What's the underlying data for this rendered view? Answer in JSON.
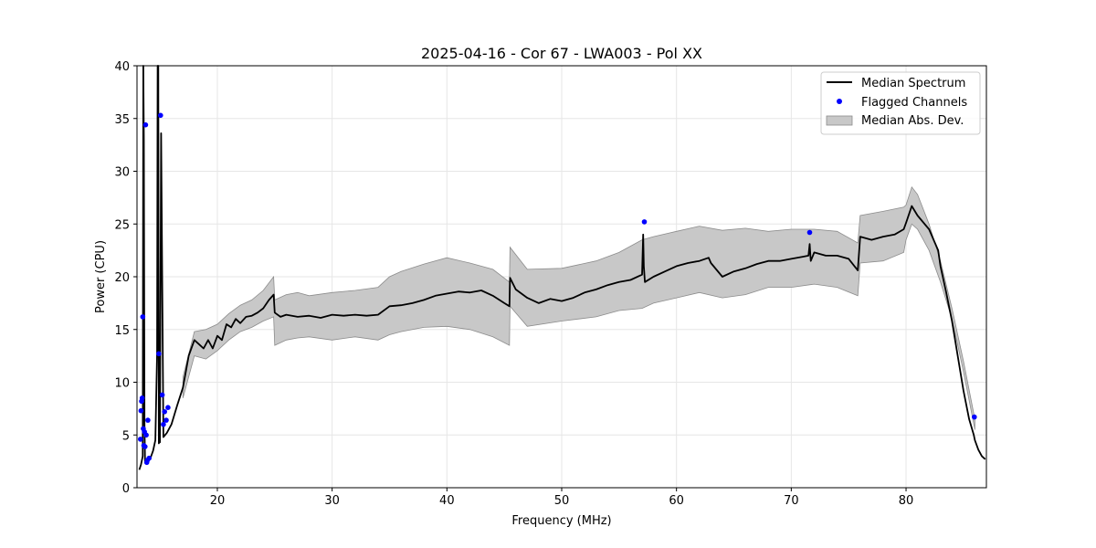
{
  "chart_data": {
    "type": "line",
    "title": "2025-04-16 - Cor 67 - LWA003 - Pol XX",
    "xlabel": "Frequency (MHz)",
    "ylabel": "Power (CPU)",
    "xlim": [
      13,
      87
    ],
    "ylim": [
      0,
      40
    ],
    "xticks": [
      20,
      30,
      40,
      50,
      60,
      70,
      80
    ],
    "yticks": [
      0,
      5,
      10,
      15,
      20,
      25,
      30,
      35,
      40
    ],
    "grid": true,
    "legend_position": "top-right",
    "colors": {
      "median": "#000000",
      "flagged": "#0000ff",
      "band": "#c8c8c8",
      "band_edge": "#8c8c8c",
      "grid": "#e6e6e6"
    },
    "series": [
      {
        "name": "Median Spectrum",
        "kind": "line",
        "x": [
          13.2,
          13.35,
          13.5,
          13.55,
          13.6,
          13.65,
          13.7,
          13.8,
          13.9,
          14.0,
          14.2,
          14.4,
          14.6,
          14.75,
          14.8,
          14.85,
          14.9,
          14.95,
          15.0,
          15.1,
          15.3,
          15.6,
          16.0,
          16.5,
          17.0,
          17.5,
          18.0,
          18.4,
          18.8,
          19.2,
          19.6,
          20.0,
          20.4,
          20.8,
          21.2,
          21.6,
          22.0,
          22.5,
          23.0,
          23.5,
          24.0,
          24.5,
          24.9,
          25.0,
          25.5,
          26.0,
          27.0,
          28.0,
          29.0,
          30.0,
          31.0,
          32.0,
          33.0,
          34.0,
          35.0,
          36.0,
          37.0,
          38.0,
          39.0,
          40.0,
          41.0,
          42.0,
          43.0,
          44.0,
          45.0,
          45.45,
          45.5,
          46.0,
          47.0,
          48.0,
          49.0,
          50.0,
          51.0,
          52.0,
          53.0,
          54.0,
          55.0,
          56.0,
          57.0,
          57.1,
          57.15,
          57.25,
          58.0,
          59.0,
          60.0,
          61.0,
          62.0,
          62.8,
          63.0,
          64.0,
          65.0,
          66.0,
          67.0,
          68.0,
          69.0,
          70.0,
          71.0,
          71.5,
          71.6,
          71.7,
          72.0,
          73.0,
          74.0,
          75.0,
          75.8,
          76.0,
          77.0,
          78.0,
          79.0,
          79.8,
          80.0,
          80.5,
          81.0,
          82.0,
          82.8,
          83.0,
          83.5,
          84.0,
          84.5,
          85.0,
          85.5,
          85.9,
          86.0,
          86.3,
          86.6,
          86.9
        ],
        "y": [
          1.7,
          2.2,
          3.0,
          40.0,
          33.0,
          6.0,
          2.5,
          2.3,
          2.4,
          2.6,
          2.9,
          3.5,
          4.5,
          12.7,
          40.0,
          40.0,
          4.2,
          4.5,
          4.3,
          33.6,
          4.8,
          5.2,
          6.0,
          7.8,
          9.5,
          12.5,
          14.0,
          13.6,
          13.2,
          14.0,
          13.2,
          14.4,
          14.0,
          15.5,
          15.2,
          16.0,
          15.6,
          16.2,
          16.3,
          16.6,
          17.0,
          17.8,
          18.3,
          16.6,
          16.2,
          16.4,
          16.2,
          16.3,
          16.1,
          16.4,
          16.3,
          16.4,
          16.3,
          16.4,
          17.2,
          17.3,
          17.5,
          17.8,
          18.2,
          18.4,
          18.6,
          18.5,
          18.7,
          18.2,
          17.5,
          17.2,
          19.9,
          18.8,
          18.0,
          17.5,
          17.9,
          17.7,
          18.0,
          18.5,
          18.8,
          19.2,
          19.5,
          19.7,
          20.2,
          24.0,
          21.0,
          19.5,
          20.0,
          20.5,
          21.0,
          21.3,
          21.5,
          21.8,
          21.3,
          20.0,
          20.5,
          20.8,
          21.2,
          21.5,
          21.5,
          21.7,
          21.9,
          22.0,
          23.1,
          21.5,
          22.3,
          22.0,
          22.0,
          21.7,
          20.6,
          23.8,
          23.5,
          23.8,
          24.0,
          24.5,
          25.1,
          26.7,
          25.8,
          24.5,
          22.5,
          21.0,
          18.5,
          15.8,
          12.5,
          9.2,
          6.5,
          5.0,
          4.5,
          3.6,
          3.0,
          2.7
        ]
      },
      {
        "name": "Flagged Channels",
        "kind": "scatter",
        "x": [
          13.3,
          13.35,
          13.4,
          13.45,
          13.5,
          13.55,
          13.6,
          13.65,
          13.7,
          13.75,
          13.8,
          13.85,
          13.9,
          13.95,
          14.05,
          14.9,
          15.05,
          15.2,
          15.3,
          15.4,
          15.55,
          15.7,
          57.2,
          71.6,
          85.95
        ],
        "y": [
          4.6,
          7.3,
          8.2,
          8.5,
          16.2,
          5.6,
          4.0,
          5.3,
          3.9,
          34.4,
          5.0,
          2.4,
          2.6,
          6.4,
          2.8,
          12.7,
          35.3,
          8.8,
          6.0,
          7.2,
          6.4,
          7.6,
          25.2,
          24.2,
          6.7
        ]
      },
      {
        "name": "Median Abs. Dev.",
        "kind": "band",
        "x": [
          17.0,
          18.0,
          19.0,
          20.0,
          21.0,
          22.0,
          23.0,
          24.0,
          24.9,
          25.0,
          26.0,
          27.0,
          28.0,
          30.0,
          32.0,
          34.0,
          35.0,
          36.0,
          38.0,
          40.0,
          42.0,
          44.0,
          45.45,
          45.5,
          47.0,
          50.0,
          53.0,
          55.0,
          57.0,
          58.0,
          60.0,
          62.0,
          64.0,
          66.0,
          68.0,
          70.0,
          72.0,
          74.0,
          75.8,
          76.0,
          78.0,
          79.8,
          80.0,
          80.5,
          81.0,
          82.0,
          83.0,
          84.0,
          85.0,
          86.0
        ],
        "lower": [
          8.5,
          12.5,
          12.2,
          13.0,
          14.0,
          14.8,
          15.2,
          15.8,
          16.2,
          13.5,
          14.0,
          14.2,
          14.3,
          14.0,
          14.3,
          14.0,
          14.5,
          14.8,
          15.2,
          15.3,
          15.0,
          14.3,
          13.5,
          17.2,
          15.3,
          15.8,
          16.2,
          16.8,
          17.0,
          17.5,
          18.0,
          18.5,
          18.0,
          18.3,
          19.0,
          19.0,
          19.3,
          19.0,
          18.2,
          21.3,
          21.5,
          22.3,
          23.5,
          25.0,
          24.5,
          22.5,
          19.5,
          16.0,
          11.0,
          5.5
        ],
        "upper": [
          10.5,
          14.8,
          15.0,
          15.5,
          16.5,
          17.3,
          17.8,
          18.7,
          20.0,
          17.8,
          18.3,
          18.5,
          18.2,
          18.5,
          18.7,
          19.0,
          20.0,
          20.5,
          21.2,
          21.8,
          21.3,
          20.7,
          19.5,
          22.8,
          20.7,
          20.8,
          21.5,
          22.3,
          23.5,
          23.8,
          24.3,
          24.8,
          24.4,
          24.6,
          24.3,
          24.5,
          24.5,
          24.3,
          23.2,
          25.8,
          26.2,
          26.6,
          26.8,
          28.5,
          27.8,
          25.0,
          21.5,
          17.0,
          12.0,
          6.5
        ]
      }
    ]
  }
}
